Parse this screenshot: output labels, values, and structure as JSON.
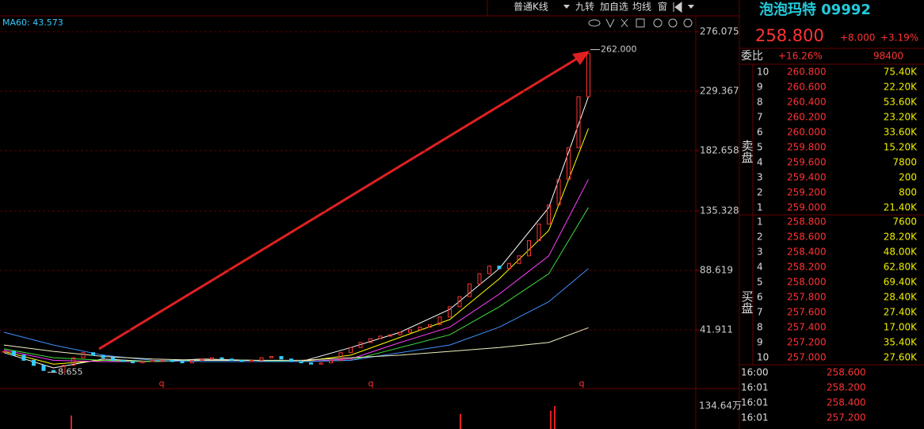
{
  "toolbar": {
    "kline_mode": "普通K线",
    "buttons": [
      "九转",
      "加自选",
      "均线",
      "窗"
    ]
  },
  "chart": {
    "indicator_label": "MA60: 43.573",
    "ylim": [
      -4.2,
      288.5
    ],
    "yticks": [
      41.911,
      88.619,
      135.328,
      182.658,
      229.367,
      276.075
    ],
    "xlim": [
      -0.4,
      69.84
    ],
    "closes": [
      25,
      22,
      18,
      14,
      10,
      8.7,
      14,
      20,
      24,
      22,
      20,
      18,
      17,
      16,
      17,
      18,
      18,
      17,
      16,
      18,
      19,
      20,
      19,
      18,
      17,
      18,
      20,
      21,
      19,
      17,
      16,
      15,
      16,
      18,
      24,
      28,
      32,
      35,
      37,
      38,
      40,
      42,
      44,
      46,
      52,
      60,
      68,
      78,
      86,
      92,
      90,
      94,
      100,
      112,
      125,
      140,
      160,
      185,
      225,
      258.8
    ],
    "ma_lines": [
      {
        "color": "#ffffff",
        "x": [
          0,
          5,
          10,
          15,
          20,
          25,
          30,
          35,
          40,
          45,
          50,
          55,
          59
        ],
        "values": [
          24,
          12,
          19,
          17,
          19,
          18,
          17,
          28,
          40,
          58,
          90,
          138,
          225
        ]
      },
      {
        "color": "#ffff00",
        "x": [
          0,
          5,
          10,
          15,
          20,
          25,
          30,
          35,
          40,
          45,
          50,
          55,
          59
        ],
        "values": [
          25,
          15,
          18,
          17,
          18,
          18,
          17,
          22,
          36,
          50,
          82,
          120,
          200
        ]
      },
      {
        "color": "#ff40ff",
        "x": [
          0,
          5,
          10,
          15,
          20,
          25,
          30,
          35,
          40,
          45,
          50,
          55,
          59
        ],
        "values": [
          26,
          18,
          17,
          17,
          18,
          18,
          17,
          19,
          32,
          44,
          70,
          100,
          160
        ]
      },
      {
        "color": "#40e040",
        "x": [
          0,
          5,
          10,
          15,
          20,
          25,
          30,
          35,
          40,
          45,
          50,
          55,
          59
        ],
        "values": [
          27,
          20,
          18,
          17,
          18,
          18,
          17,
          18,
          28,
          38,
          60,
          86,
          138
        ]
      },
      {
        "color": "#4090ff",
        "x": [
          0,
          5,
          10,
          15,
          20,
          25,
          30,
          35,
          40,
          45,
          50,
          55,
          59
        ],
        "values": [
          40,
          30,
          22,
          18,
          17,
          17,
          17,
          18,
          24,
          30,
          44,
          64,
          90
        ]
      },
      {
        "color": "#f0f0c0",
        "x": [
          0,
          5,
          10,
          15,
          20,
          25,
          30,
          35,
          40,
          45,
          50,
          55,
          59
        ],
        "values": [
          30,
          25,
          21,
          19,
          18,
          18,
          18,
          20,
          22,
          25,
          28,
          32,
          43.573
        ]
      }
    ],
    "high": {
      "value": 262,
      "label": "262.000"
    },
    "low": {
      "value": 8.655,
      "label": "8.655"
    },
    "period_markers": [
      "q",
      "q",
      "q"
    ],
    "volume_tick": "134.64万"
  },
  "quote": {
    "name": "泡泡玛特 09992",
    "price": "258.800",
    "change": "+8.000",
    "change_pct": "+3.19%",
    "ratio_label": "委比",
    "ratio": "+16.26%",
    "ratio_diff": "98400",
    "sell_label": "卖盘",
    "buy_label": "买盘",
    "sell": [
      [
        "10",
        "260.800",
        "75.40K"
      ],
      [
        "9",
        "260.600",
        "22.20K"
      ],
      [
        "8",
        "260.400",
        "53.60K"
      ],
      [
        "7",
        "260.200",
        "23.20K"
      ],
      [
        "6",
        "260.000",
        "33.60K"
      ],
      [
        "5",
        "259.800",
        "15.20K"
      ],
      [
        "4",
        "259.600",
        "7800"
      ],
      [
        "3",
        "259.400",
        "200"
      ],
      [
        "2",
        "259.200",
        "800"
      ],
      [
        "1",
        "259.000",
        "21.40K"
      ]
    ],
    "buy": [
      [
        "1",
        "258.800",
        "7600"
      ],
      [
        "2",
        "258.600",
        "28.20K"
      ],
      [
        "3",
        "258.400",
        "48.00K"
      ],
      [
        "4",
        "258.200",
        "62.80K"
      ],
      [
        "5",
        "258.000",
        "69.40K"
      ],
      [
        "6",
        "257.800",
        "28.40K"
      ],
      [
        "7",
        "257.600",
        "27.40K"
      ],
      [
        "8",
        "257.400",
        "17.00K"
      ],
      [
        "9",
        "257.200",
        "35.40K"
      ],
      [
        "10",
        "257.000",
        "27.60K"
      ]
    ],
    "trades": [
      [
        "16:00",
        "258.600"
      ],
      [
        "16:01",
        "258.200"
      ],
      [
        "16:01",
        "258.400"
      ],
      [
        "16:01",
        "257.200"
      ]
    ]
  }
}
